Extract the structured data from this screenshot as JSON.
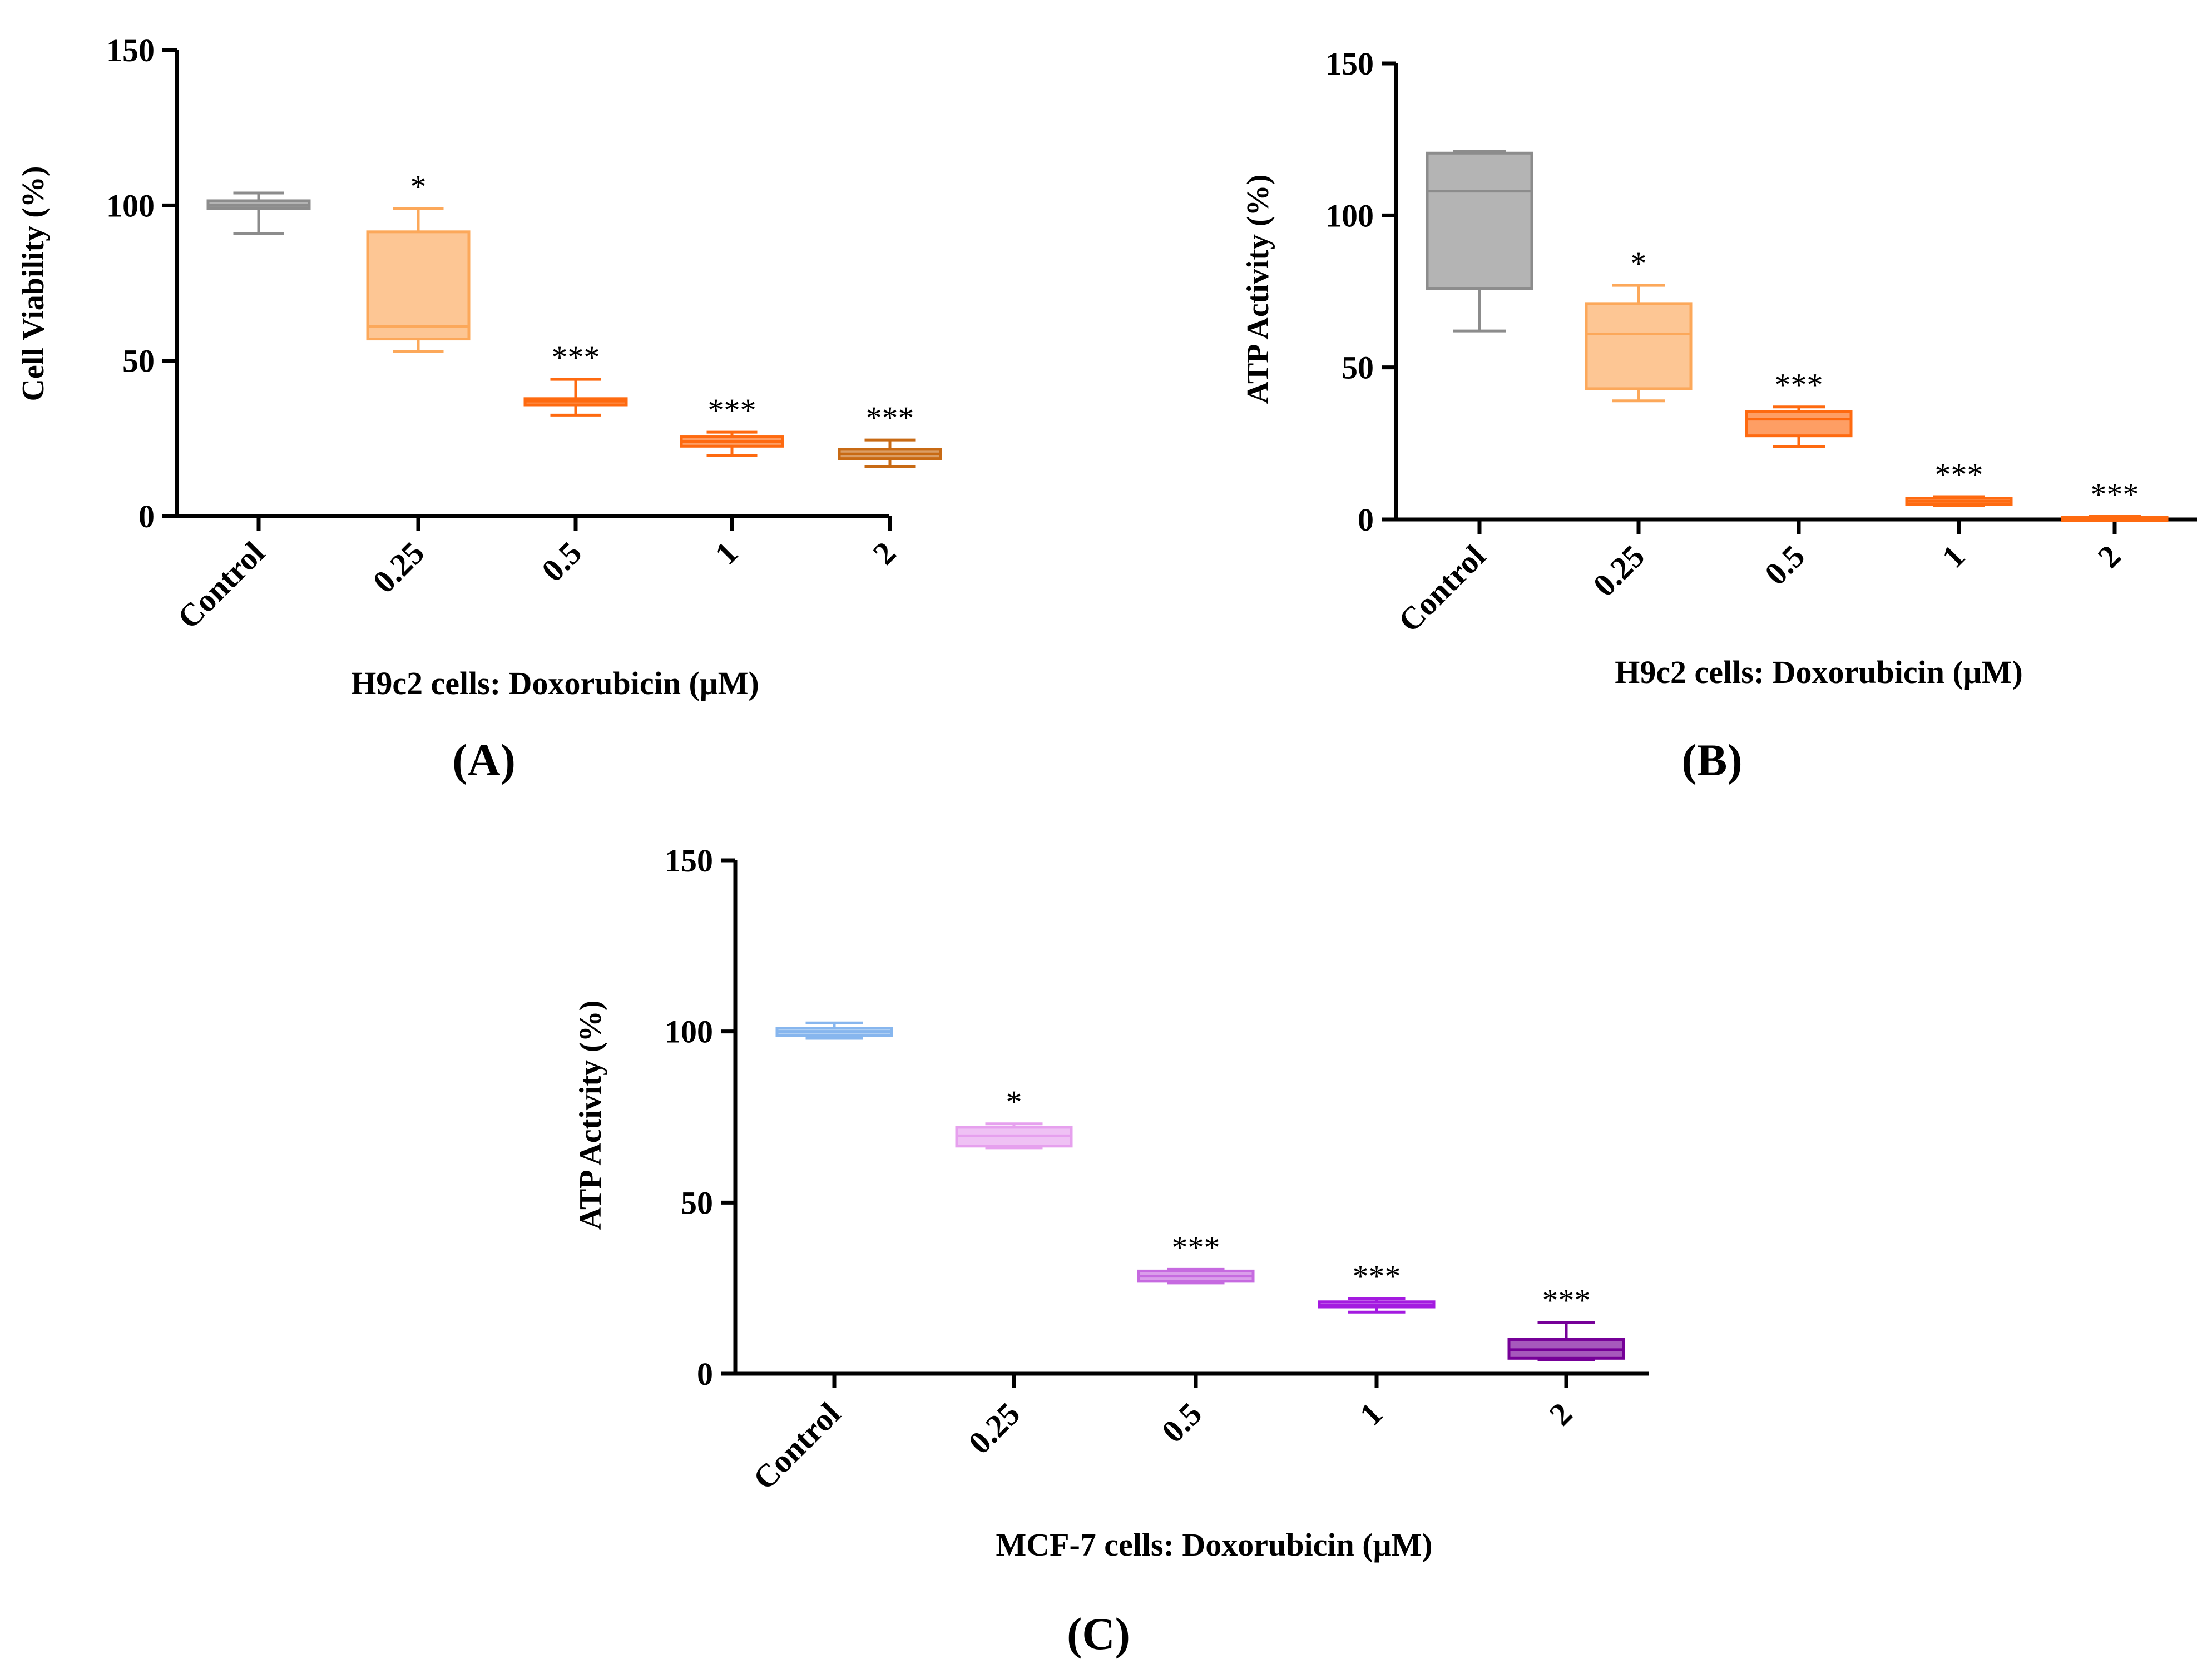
{
  "figure": {
    "panel_a_label": "(A)",
    "panel_b_label": "(B)",
    "panel_c_label": "(C)"
  },
  "chart_data": [
    {
      "id": "A",
      "type": "box",
      "title": "",
      "panel_label": "(A)",
      "xlabel": "H9c2 cells: Doxorubicin (μM)",
      "ylabel": "Cell Viability (%)",
      "ylim": [
        0,
        150
      ],
      "yticks": [
        0,
        50,
        100,
        150
      ],
      "categories": [
        "Control",
        "0.25",
        "0.5",
        "1",
        "2"
      ],
      "boxes": [
        {
          "min": 91,
          "q1": 99,
          "median": 100,
          "q3": 101.5,
          "max": 104,
          "color": "#8c8c8c",
          "sig": ""
        },
        {
          "min": 53,
          "q1": 57,
          "median": 61,
          "q3": 91.5,
          "max": 99,
          "color": "#fca85a",
          "sig": "*"
        },
        {
          "min": 32.5,
          "q1": 35.8,
          "median": 37,
          "q3": 37.8,
          "max": 44,
          "color": "#fe6a10",
          "sig": "***"
        },
        {
          "min": 19.5,
          "q1": 22.5,
          "median": 24,
          "q3": 25.5,
          "max": 27,
          "color": "#fe6a10",
          "sig": "***"
        },
        {
          "min": 16,
          "q1": 18.5,
          "median": 20,
          "q3": 21.5,
          "max": 24.5,
          "color": "#c86a14",
          "sig": "***"
        }
      ]
    },
    {
      "id": "B",
      "type": "box",
      "title": "",
      "panel_label": "(B)",
      "xlabel": "H9c2 cells: Doxorubicin (μM)",
      "ylabel": "ATP Activity (%)",
      "ylim": [
        0,
        150
      ],
      "yticks": [
        0,
        50,
        100,
        150
      ],
      "categories": [
        "Control",
        "0.25",
        "0.5",
        "1",
        "2"
      ],
      "boxes": [
        {
          "min": 62,
          "q1": 76,
          "median": 108,
          "q3": 120.5,
          "max": 121,
          "color": "#8c8c8c",
          "sig": ""
        },
        {
          "min": 39,
          "q1": 43,
          "median": 61,
          "q3": 71,
          "max": 77,
          "color": "#fca85a",
          "sig": "*"
        },
        {
          "min": 24,
          "q1": 27.5,
          "median": 33,
          "q3": 35.5,
          "max": 37,
          "color": "#fe6a10",
          "sig": "***"
        },
        {
          "min": 4.5,
          "q1": 5,
          "median": 6,
          "q3": 7,
          "max": 7.5,
          "color": "#fe6a10",
          "sig": "***"
        },
        {
          "min": 0.2,
          "q1": 0.4,
          "median": 0.6,
          "q3": 0.8,
          "max": 1,
          "color": "#fe6a10",
          "sig": "***"
        }
      ]
    },
    {
      "id": "C",
      "type": "box",
      "title": "",
      "panel_label": "(C)",
      "xlabel": "MCF-7 cells: Doxorubicin (μM)",
      "ylabel": "ATP Activity (%)",
      "ylim": [
        0,
        150
      ],
      "yticks": [
        0,
        50,
        100,
        150
      ],
      "categories": [
        "Control",
        "0.25",
        "0.5",
        "1",
        "2"
      ],
      "boxes": [
        {
          "min": 98,
          "q1": 98.8,
          "median": 100,
          "q3": 101,
          "max": 102.5,
          "color": "#87b6ee",
          "sig": ""
        },
        {
          "min": 66,
          "q1": 66.5,
          "median": 69.5,
          "q3": 72,
          "max": 73,
          "color": "#e6a0ee",
          "sig": "*"
        },
        {
          "min": 26.5,
          "q1": 27,
          "median": 28.5,
          "q3": 30,
          "max": 30.5,
          "color": "#c66ae0",
          "sig": "***"
        },
        {
          "min": 18,
          "q1": 19.5,
          "median": 20,
          "q3": 21,
          "max": 22,
          "color": "#a41ae0",
          "sig": "***"
        },
        {
          "min": 4,
          "q1": 4.5,
          "median": 7,
          "q3": 10,
          "max": 15,
          "color": "#760098",
          "sig": "***"
        }
      ]
    }
  ]
}
